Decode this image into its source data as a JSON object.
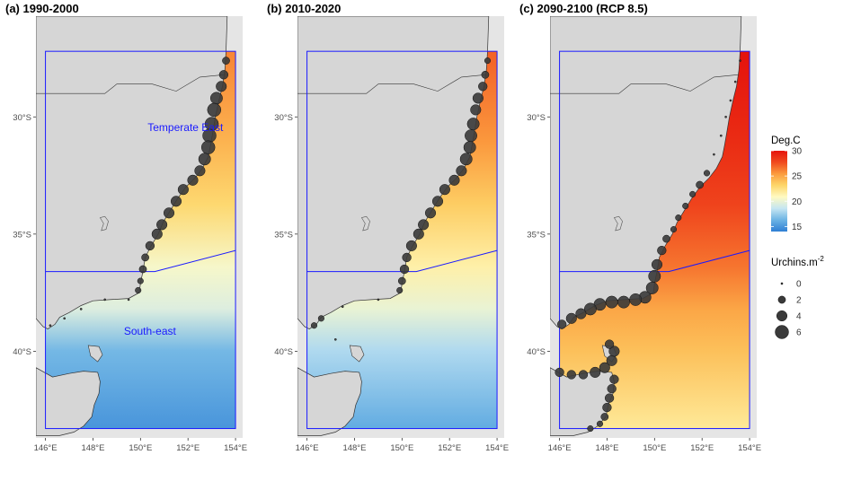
{
  "chart_data": {
    "type": "map",
    "x_ticks": [
      "146°E",
      "148°E",
      "150°E",
      "152°E",
      "154°E"
    ],
    "y_ticks": [
      "30°S",
      "35°S",
      "40°S"
    ],
    "x_tick_values": [
      146,
      148,
      150,
      152,
      154
    ],
    "y_tick_values": [
      -30,
      -35,
      -40
    ],
    "xlim": [
      145.6,
      154.3
    ],
    "ylim": [
      -43.7,
      -25.7
    ],
    "panels": [
      {
        "title": "(a) 1990-2000",
        "region_labels": [
          "Temperate East",
          "South-east"
        ],
        "fill_scheme": "early",
        "urchins": [
          {
            "lon": 153.6,
            "lat": -27.6,
            "v": 2
          },
          {
            "lon": 153.5,
            "lat": -28.2,
            "v": 3
          },
          {
            "lon": 153.4,
            "lat": -28.7,
            "v": 4
          },
          {
            "lon": 153.2,
            "lat": -29.2,
            "v": 5
          },
          {
            "lon": 153.1,
            "lat": -29.7,
            "v": 6
          },
          {
            "lon": 153.0,
            "lat": -30.3,
            "v": 6
          },
          {
            "lon": 152.9,
            "lat": -30.8,
            "v": 6
          },
          {
            "lon": 152.85,
            "lat": -31.3,
            "v": 6
          },
          {
            "lon": 152.7,
            "lat": -31.8,
            "v": 5
          },
          {
            "lon": 152.5,
            "lat": -32.3,
            "v": 4
          },
          {
            "lon": 152.2,
            "lat": -32.7,
            "v": 4
          },
          {
            "lon": 151.8,
            "lat": -33.1,
            "v": 4
          },
          {
            "lon": 151.5,
            "lat": -33.6,
            "v": 4
          },
          {
            "lon": 151.2,
            "lat": -34.1,
            "v": 4
          },
          {
            "lon": 150.9,
            "lat": -34.6,
            "v": 4
          },
          {
            "lon": 150.7,
            "lat": -35.0,
            "v": 4
          },
          {
            "lon": 150.4,
            "lat": -35.5,
            "v": 3
          },
          {
            "lon": 150.2,
            "lat": -36.0,
            "v": 2
          },
          {
            "lon": 150.1,
            "lat": -36.5,
            "v": 2
          },
          {
            "lon": 150.0,
            "lat": -37.0,
            "v": 1
          },
          {
            "lon": 149.9,
            "lat": -37.4,
            "v": 1
          },
          {
            "lon": 149.5,
            "lat": -37.8,
            "v": 0
          },
          {
            "lon": 148.5,
            "lat": -37.8,
            "v": 0
          },
          {
            "lon": 147.5,
            "lat": -38.2,
            "v": 0
          },
          {
            "lon": 146.8,
            "lat": -38.6,
            "v": 0
          },
          {
            "lon": 146.2,
            "lat": -38.9,
            "v": 0
          }
        ]
      },
      {
        "title": "(b) 2010-2020",
        "region_labels": [
          "",
          ""
        ],
        "fill_scheme": "mid",
        "urchins": [
          {
            "lon": 153.6,
            "lat": -27.6,
            "v": 1
          },
          {
            "lon": 153.5,
            "lat": -28.2,
            "v": 2
          },
          {
            "lon": 153.4,
            "lat": -28.7,
            "v": 3
          },
          {
            "lon": 153.2,
            "lat": -29.2,
            "v": 4
          },
          {
            "lon": 153.1,
            "lat": -29.7,
            "v": 4
          },
          {
            "lon": 153.0,
            "lat": -30.3,
            "v": 5
          },
          {
            "lon": 152.9,
            "lat": -30.8,
            "v": 5
          },
          {
            "lon": 152.85,
            "lat": -31.3,
            "v": 5
          },
          {
            "lon": 152.7,
            "lat": -31.8,
            "v": 5
          },
          {
            "lon": 152.5,
            "lat": -32.3,
            "v": 4
          },
          {
            "lon": 152.2,
            "lat": -32.7,
            "v": 4
          },
          {
            "lon": 151.8,
            "lat": -33.1,
            "v": 4
          },
          {
            "lon": 151.5,
            "lat": -33.6,
            "v": 4
          },
          {
            "lon": 151.2,
            "lat": -34.1,
            "v": 4
          },
          {
            "lon": 150.9,
            "lat": -34.6,
            "v": 4
          },
          {
            "lon": 150.7,
            "lat": -35.0,
            "v": 4
          },
          {
            "lon": 150.4,
            "lat": -35.5,
            "v": 4
          },
          {
            "lon": 150.2,
            "lat": -36.0,
            "v": 3
          },
          {
            "lon": 150.1,
            "lat": -36.5,
            "v": 3
          },
          {
            "lon": 150.0,
            "lat": -37.0,
            "v": 2
          },
          {
            "lon": 149.9,
            "lat": -37.4,
            "v": 1
          },
          {
            "lon": 149.0,
            "lat": -37.8,
            "v": 0
          },
          {
            "lon": 147.5,
            "lat": -38.1,
            "v": 0
          },
          {
            "lon": 146.6,
            "lat": -38.6,
            "v": 1
          },
          {
            "lon": 146.3,
            "lat": -38.9,
            "v": 1
          },
          {
            "lon": 147.2,
            "lat": -39.5,
            "v": 0
          }
        ]
      },
      {
        "title": "(c) 2090-2100 (RCP 8.5)",
        "region_labels": [
          "",
          ""
        ],
        "fill_scheme": "late",
        "urchins": [
          {
            "lon": 153.6,
            "lat": -27.6,
            "v": 0
          },
          {
            "lon": 153.4,
            "lat": -28.5,
            "v": 0
          },
          {
            "lon": 153.2,
            "lat": -29.3,
            "v": 0
          },
          {
            "lon": 153.0,
            "lat": -30.0,
            "v": 0
          },
          {
            "lon": 152.8,
            "lat": -30.8,
            "v": 0
          },
          {
            "lon": 152.5,
            "lat": -31.6,
            "v": 0
          },
          {
            "lon": 152.2,
            "lat": -32.4,
            "v": 1
          },
          {
            "lon": 151.9,
            "lat": -32.9,
            "v": 2
          },
          {
            "lon": 151.6,
            "lat": -33.3,
            "v": 1
          },
          {
            "lon": 151.3,
            "lat": -33.8,
            "v": 1
          },
          {
            "lon": 151.0,
            "lat": -34.3,
            "v": 1
          },
          {
            "lon": 150.8,
            "lat": -34.8,
            "v": 1
          },
          {
            "lon": 150.5,
            "lat": -35.2,
            "v": 2
          },
          {
            "lon": 150.3,
            "lat": -35.7,
            "v": 3
          },
          {
            "lon": 150.1,
            "lat": -36.3,
            "v": 4
          },
          {
            "lon": 150.0,
            "lat": -36.8,
            "v": 5
          },
          {
            "lon": 149.9,
            "lat": -37.3,
            "v": 5
          },
          {
            "lon": 149.6,
            "lat": -37.7,
            "v": 5
          },
          {
            "lon": 149.2,
            "lat": -37.8,
            "v": 5
          },
          {
            "lon": 148.7,
            "lat": -37.9,
            "v": 5
          },
          {
            "lon": 148.2,
            "lat": -37.9,
            "v": 5
          },
          {
            "lon": 147.7,
            "lat": -38.0,
            "v": 5
          },
          {
            "lon": 147.3,
            "lat": -38.2,
            "v": 5
          },
          {
            "lon": 146.9,
            "lat": -38.4,
            "v": 4
          },
          {
            "lon": 146.5,
            "lat": -38.6,
            "v": 4
          },
          {
            "lon": 146.1,
            "lat": -38.85,
            "v": 3
          },
          {
            "lon": 146.0,
            "lat": -40.9,
            "v": 3
          },
          {
            "lon": 146.5,
            "lat": -41.0,
            "v": 3
          },
          {
            "lon": 147.0,
            "lat": -41.0,
            "v": 3
          },
          {
            "lon": 147.5,
            "lat": -40.9,
            "v": 4
          },
          {
            "lon": 147.9,
            "lat": -40.7,
            "v": 4
          },
          {
            "lon": 148.2,
            "lat": -40.4,
            "v": 4
          },
          {
            "lon": 148.3,
            "lat": -40.0,
            "v": 4
          },
          {
            "lon": 148.1,
            "lat": -39.7,
            "v": 3
          },
          {
            "lon": 148.3,
            "lat": -41.2,
            "v": 3
          },
          {
            "lon": 148.2,
            "lat": -41.6,
            "v": 3
          },
          {
            "lon": 148.1,
            "lat": -42.0,
            "v": 3
          },
          {
            "lon": 148.0,
            "lat": -42.4,
            "v": 3
          },
          {
            "lon": 147.9,
            "lat": -42.8,
            "v": 2
          },
          {
            "lon": 147.7,
            "lat": -43.1,
            "v": 1
          },
          {
            "lon": 147.3,
            "lat": -43.3,
            "v": 1
          }
        ]
      }
    ],
    "legend_temperature": {
      "title": "Deg.C",
      "ticks": [
        30,
        25,
        20,
        15
      ],
      "range": [
        14,
        30
      ],
      "colors": [
        "#2f7fd4",
        "#6cb3e4",
        "#c5e6f2",
        "#fffac2",
        "#fdd66a",
        "#fb9b3e",
        "#f04a1e",
        "#e5140d"
      ]
    },
    "legend_urchins": {
      "title_base": "Urchins.m",
      "title_exponent": "-2",
      "values": [
        "0",
        "2",
        "4",
        "6"
      ]
    }
  }
}
